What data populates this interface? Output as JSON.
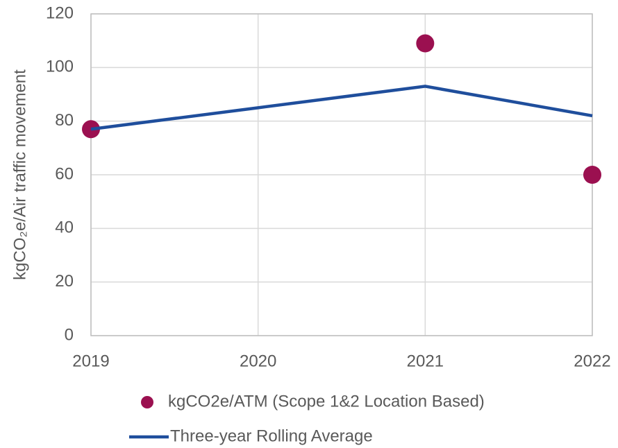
{
  "chart_data": {
    "type": "line",
    "y_label": "kgCO₂e/Air traffic movement",
    "x": [
      2019,
      2020,
      2021,
      2022
    ],
    "series": [
      {
        "name": "kgCO2e/ATM (Scope 1&2 Location Based)",
        "type": "scatter",
        "color": "#9b1050",
        "values": [
          77,
          null,
          109,
          60
        ]
      },
      {
        "name": "Three-year Rolling Average",
        "type": "line",
        "color": "#1f4e9c",
        "values": [
          77,
          85,
          93,
          82
        ]
      }
    ],
    "xlim": [
      2019,
      2022
    ],
    "xticks": [
      2019,
      2020,
      2021,
      2022
    ],
    "ylim": [
      0,
      120
    ],
    "yticks": [
      0,
      20,
      40,
      60,
      80,
      100,
      120
    ],
    "grid": true,
    "legend": "bottom"
  }
}
